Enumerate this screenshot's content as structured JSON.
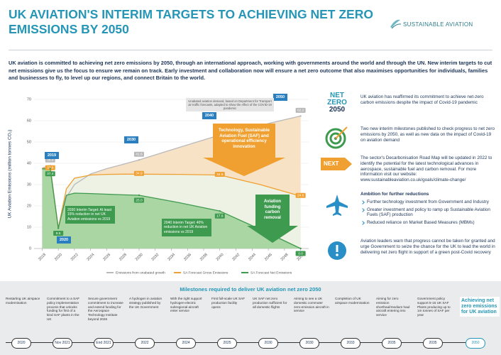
{
  "header": {
    "title": "UK AVIATION'S INTERIM TARGETS TO ACHIEVING NET ZERO EMISSIONS BY 2050",
    "logo": "SUSTAINABLE AVIATION"
  },
  "intro": "UK aviation is committed to achieving net zero emissions by 2050, through an international approach, working with governments around the world and through the UN. New interim targets to cut net emissions give us the focus to ensure we remain on track. Early investment and collaboration now will ensure a net zero outcome that also maximises opportunities for individuals, families and businesses to fly, to level up our regions, and connect Britain to the world.",
  "chart_data": {
    "type": "area",
    "y_label": "UK Aviation Emissions (million tonnes CO₂)",
    "x": [
      2018,
      2019,
      2020,
      2021,
      2022,
      2024,
      2026,
      2028,
      2030,
      2035,
      2040,
      2045,
      2050
    ],
    "xlim": [
      2017,
      2051
    ],
    "xticks": [
      2018,
      2020,
      2022,
      2024,
      2026,
      2028,
      2030,
      2032,
      2034,
      2036,
      2038,
      2040,
      2042,
      2044,
      2046,
      2048,
      2050
    ],
    "ylim": [
      0,
      70
    ],
    "yticks": [
      0,
      10,
      20,
      30,
      40,
      50,
      60,
      70
    ],
    "grid": true,
    "series": [
      {
        "name": "Emissions from unabated growth",
        "color": "#b9b9b9",
        "fill": "#f7e2c6",
        "values": [
          37.8,
          38.9,
          9.5,
          24,
          30,
          35,
          37.5,
          39.5,
          41.6,
          47.5,
          53.3,
          57.8,
          62.2
        ],
        "value_labels": [
          null,
          "38.9",
          null,
          null,
          null,
          null,
          null,
          null,
          "41.6",
          null,
          "53.3",
          null,
          "62.2"
        ]
      },
      {
        "name": "SA Forecast Gross Emissions",
        "color": "#f0a030",
        "fill": "#eef2e4",
        "values": [
          37.6,
          37.6,
          9.5,
          28,
          33,
          34.5,
          34.8,
          34.9,
          34.9,
          34.8,
          34.5,
          30,
          24.6
        ],
        "value_labels": [
          null,
          "37.6",
          null,
          null,
          null,
          null,
          null,
          null,
          "34.9",
          null,
          "34.5",
          null,
          "24.6"
        ]
      },
      {
        "name": "SA Forecast Net Emissions",
        "color": "#3e9a4e",
        "fill": "#a9d6a3",
        "values": [
          37.4,
          37.4,
          9.5,
          25,
          26,
          25.8,
          25.5,
          25.2,
          25,
          21.5,
          17.6,
          9,
          0
        ],
        "value_labels": [
          null,
          "37.4",
          "9.5",
          null,
          null,
          null,
          null,
          null,
          "25.0",
          null,
          "17.6",
          null,
          "0.0"
        ]
      }
    ],
    "year_markers": [
      "2019",
      "2020",
      "2030",
      "2040",
      "2050"
    ],
    "annotations": [
      "Unabated aviation demand, based on Department for Transport air traffic forecasts, adapted to show the effect of the COVID-19 pandemic",
      "Technology, Sustainable Aviation Fuel (SAF) and operational efficiency innovation",
      "Aviation funding carbon removal",
      "2030 Interim Target: At least 15% reduction in net UK Aviation emissions vs 2019",
      "2040 Interim Target: 40% reduction in net UK Aviation emissions vs 2019"
    ]
  },
  "key_points": [
    {
      "icon_text": [
        "NET",
        "ZERO",
        "2050"
      ],
      "text": "UK aviation has reaffirmed its commitment to achieve net-zero carbon emissions despite the impact of Covid-19 pandemic"
    },
    {
      "text": "Two new interim milestones published to check progress to net zero emissions by 2050, as well as new data on the impact of Covid-19 on aviation demand"
    },
    {
      "icon_text": [
        "NEXT"
      ],
      "text": "The sector's Decarbonisation Road Map will be updated in 2022 to identify the potential for the latest technological advances in aerospace, sustainable fuel and carbon removal. For more information visit our website: www.sustainableaviation.co.uk/goals/climate-change/"
    },
    {
      "heading": "Ambition for further reductions",
      "bullets": [
        "Further technology investment from Government and Industry",
        "Greater investment and policy to ramp up Sustainable Aviation Fuels (SAF) production",
        "Reduced reliance on Market Based Measures (MBMs)"
      ]
    },
    {
      "text": "Aviation leaders warn that progress cannot be taken for granted and urge Government to seize the chance for the UK to lead the world in delivering net zero flight in support of a green post-Covid recovery"
    }
  ],
  "milestones": {
    "title": "Milestones required to deliver UK aviation net zero 2050",
    "items": [
      {
        "text": "Restarting UK airspace modernisation",
        "date": "2020"
      },
      {
        "text": "Commitment to a SAF policy implementation process that unlocks funding for first of a kind SAF plants in the UK",
        "date": "Nov 2021"
      },
      {
        "text": "Secure government commitment to increase and extend funding for the Aerospace Technology Institute beyond 2026",
        "date": "End 2021"
      },
      {
        "text": "A hydrogen in aviation strategy published by the UK Government",
        "date": "2022"
      },
      {
        "text": "With the right support hydrogen-electric subregional aircraft enter service",
        "date": "2024"
      },
      {
        "text": "First full-scale UK SAF production facility opens",
        "date": "2025"
      },
      {
        "text": "UK SAF net zero production sufficient for all domestic flights",
        "date": "2030"
      },
      {
        "text": "Aiming to see a UK domestic commuter zero-emission aircraft in service",
        "date": "2030"
      },
      {
        "text": "Completion of UK airspace modernisation",
        "date": "2033"
      },
      {
        "text": "Aiming for zero emission shorthaul/medium haul aircraft entering into service",
        "date": "2035"
      },
      {
        "text": "Government policy support 5-15 UK SAF Plants producing up to 1m tonnes of SAF per year",
        "date": "2035"
      },
      {
        "text": "Achieving net zero emissions for UK aviation",
        "date": "2050"
      }
    ]
  }
}
